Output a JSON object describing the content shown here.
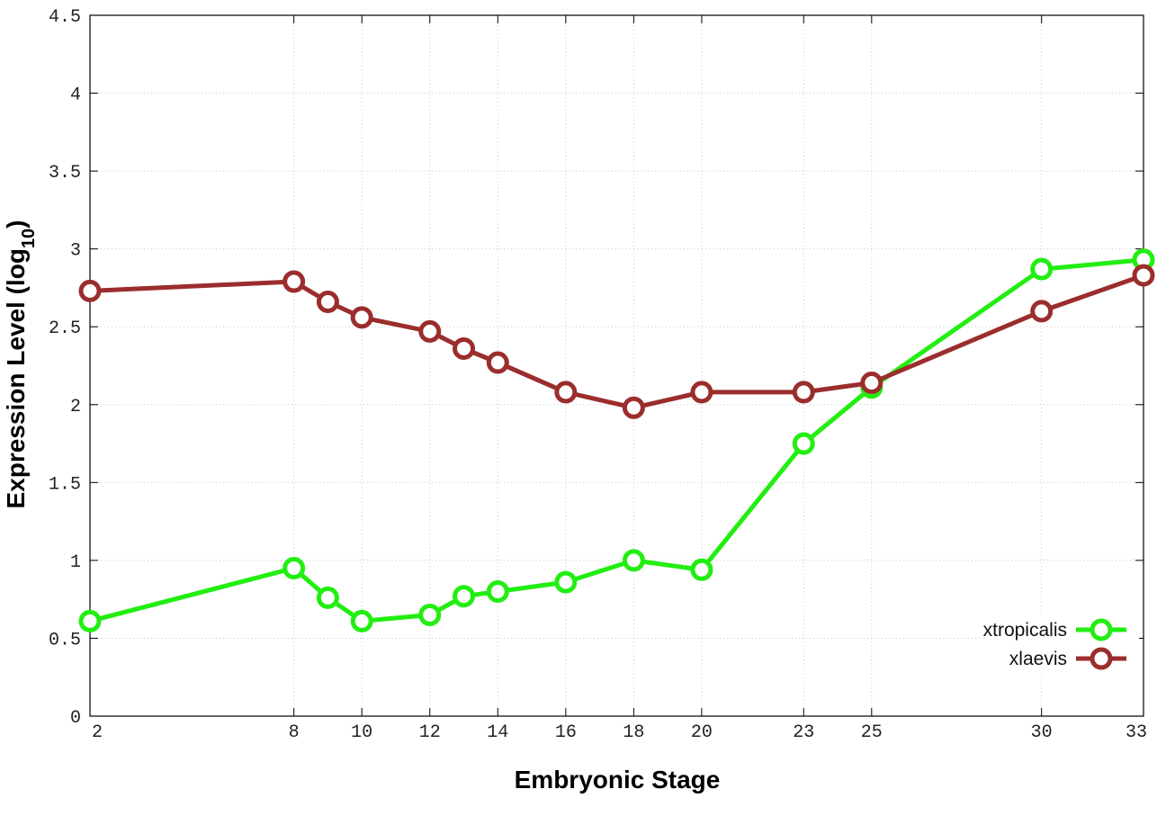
{
  "chart_data": {
    "type": "line",
    "title": "",
    "xlabel": "Embryonic Stage",
    "ylabel": {
      "prefix": "Expression Level (log",
      "subscript": "10",
      "suffix": ")"
    },
    "x_ticks": [
      2,
      8,
      10,
      12,
      14,
      16,
      18,
      20,
      23,
      25,
      30,
      33
    ],
    "x": [
      2,
      8,
      9,
      10,
      12,
      13,
      14,
      16,
      18,
      20,
      23,
      25,
      30,
      33
    ],
    "xlim": [
      2,
      33
    ],
    "y_ticks": [
      "0",
      "0.5",
      "1",
      "1.5",
      "2",
      "2.5",
      "3",
      "3.5",
      "4",
      "4.5"
    ],
    "ylim": [
      0,
      4.5
    ],
    "grid": true,
    "legend_position": "bottom-right",
    "series": [
      {
        "name": "xtropicalis",
        "color": "#22ee11",
        "values": [
          0.61,
          0.95,
          0.76,
          0.61,
          0.65,
          0.77,
          0.8,
          0.86,
          1.0,
          0.94,
          1.75,
          2.11,
          2.87,
          2.93
        ]
      },
      {
        "name": "xlaevis",
        "color": "#9b2d2d",
        "values": [
          2.73,
          2.79,
          2.66,
          2.56,
          2.47,
          2.36,
          2.27,
          2.08,
          1.98,
          2.08,
          2.08,
          2.14,
          2.6,
          2.83
        ]
      }
    ]
  }
}
